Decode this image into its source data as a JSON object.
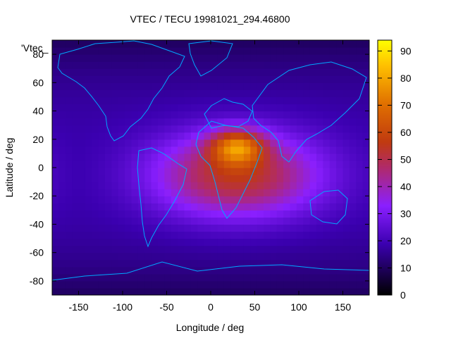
{
  "chart_data": {
    "type": "heatmap",
    "title": "VTEC / TECU 19981021_294.46800",
    "xlabel": "Longitude / deg",
    "ylabel": "Latitude / deg",
    "xlim": [
      -180,
      180
    ],
    "ylim": [
      -90,
      90
    ],
    "x_ticks": [
      "-150",
      "-100",
      "-50",
      "0",
      "50",
      "100",
      "150"
    ],
    "y_ticks": [
      "-80",
      "-60",
      "-40",
      "-20",
      "0",
      "20",
      "40",
      "60",
      "80"
    ],
    "colorbar": {
      "range": [
        0,
        94
      ],
      "ticks": [
        "0",
        "10",
        "20",
        "30",
        "40",
        "50",
        "60",
        "70",
        "80",
        "90"
      ]
    },
    "key_label": "'Vtec_",
    "overlay": "coastlines",
    "colors": {
      "coastline": "#00a8ff",
      "colormap": [
        "#000000",
        "#6a00ff",
        "#c03000",
        "#e07000",
        "#ffd000",
        "#ffff00"
      ]
    },
    "peak": {
      "lon": 30,
      "lat": 15,
      "value": 93
    },
    "approximate_field": {
      "background_low": 18,
      "equatorial_crest_value": 55,
      "polar_value": 10
    }
  }
}
